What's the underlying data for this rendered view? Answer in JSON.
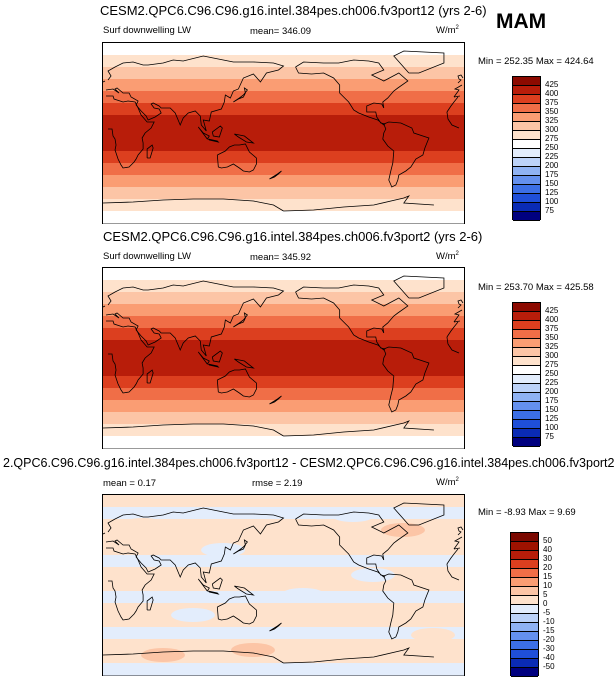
{
  "season": "MAM",
  "variable_label": "Surf downwelling LW",
  "units_label": "W/m",
  "units_exponent": "2",
  "panels": [
    {
      "title": "CESM2.QPC6.C96.C96.g16.intel.384pes.ch006.fv3port12 (yrs 2-6)",
      "mean_text": "mean= 346.09",
      "minmax_text": "Min = 252.35 Max = 424.64"
    },
    {
      "title": "CESM2.QPC6.C96.C96.g16.intel.384pes.ch006.fv3port2 (yrs 2-6)",
      "mean_text": "mean= 345.92",
      "minmax_text": "Min = 253.70 Max = 425.58"
    },
    {
      "title": "2.QPC6.C96.C96.g16.intel.384pes.ch006.fv3port12 - CESM2.QPC6.C96.C96.g16.intel.384pes.ch006.fv3port2",
      "mean_text": "mean =   0.17",
      "rmse_text": "rmse =   2.19",
      "minmax_text": "Min =  -8.93 Max =   9.69"
    }
  ],
  "chart_data": [
    {
      "type": "heatmap",
      "title": "CESM2.QPC6.C96.C96.g16.intel.384pes.ch006.fv3port12 (yrs 2-6)",
      "variable": "Surf downwelling LW",
      "units": "W/m2",
      "mean": 346.09,
      "min": 252.35,
      "max": 424.64,
      "colorbar_levels": [
        75,
        100,
        125,
        150,
        175,
        200,
        225,
        250,
        275,
        300,
        325,
        350,
        375,
        400,
        425
      ],
      "colors": [
        "#00007f",
        "#0a2bb5",
        "#1f4fd9",
        "#3c6fe6",
        "#6490ee",
        "#8fb2f3",
        "#bcd2f8",
        "#e3edfc",
        "#ffffff",
        "#fee2cc",
        "#fcc5a6",
        "#fa9d73",
        "#f06e47",
        "#dc3f1f",
        "#b81d0a",
        "#8c0a00"
      ],
      "field_band_values_north_to_south": [
        262,
        287,
        312,
        337,
        362,
        387,
        412,
        412,
        412,
        387,
        362,
        337,
        312,
        287,
        262
      ]
    },
    {
      "type": "heatmap",
      "title": "CESM2.QPC6.C96.C96.g16.intel.384pes.ch006.fv3port2 (yrs 2-6)",
      "variable": "Surf downwelling LW",
      "units": "W/m2",
      "mean": 345.92,
      "min": 253.7,
      "max": 425.58,
      "colorbar_levels": [
        75,
        100,
        125,
        150,
        175,
        200,
        225,
        250,
        275,
        300,
        325,
        350,
        375,
        400,
        425
      ],
      "colors": [
        "#00007f",
        "#0a2bb5",
        "#1f4fd9",
        "#3c6fe6",
        "#6490ee",
        "#8fb2f3",
        "#bcd2f8",
        "#e3edfc",
        "#ffffff",
        "#fee2cc",
        "#fcc5a6",
        "#fa9d73",
        "#f06e47",
        "#dc3f1f",
        "#b81d0a",
        "#8c0a00"
      ],
      "field_band_values_north_to_south": [
        262,
        287,
        312,
        337,
        362,
        387,
        412,
        412,
        412,
        387,
        362,
        337,
        312,
        287,
        262
      ]
    },
    {
      "type": "heatmap",
      "title": "2.QPC6.C96.C96.g16.intel.384pes.ch006.fv3port12 - CESM2.QPC6.C96.C96.g16.intel.384pes.ch006.fv3port2",
      "units": "W/m2",
      "mean": 0.17,
      "rmse": 2.19,
      "min": -8.93,
      "max": 9.69,
      "colorbar_levels": [
        -50,
        -40,
        -30,
        -20,
        -15,
        -10,
        -5,
        0,
        5,
        10,
        15,
        20,
        30,
        40,
        50
      ],
      "colors": [
        "#00007f",
        "#0a2bb5",
        "#1f4fd9",
        "#3c6fe6",
        "#6490ee",
        "#8fb2f3",
        "#bcd2f8",
        "#e3edfc",
        "#fee2cc",
        "#fcc5a6",
        "#fa9d73",
        "#f06e47",
        "#dc3f1f",
        "#b81d0a",
        "#9e1200",
        "#7a0800"
      ],
      "field_band_values_north_to_south": [
        2,
        -2,
        2,
        2,
        2,
        -2,
        2,
        2,
        -2,
        2,
        2,
        -2,
        2,
        2,
        -2
      ]
    }
  ]
}
